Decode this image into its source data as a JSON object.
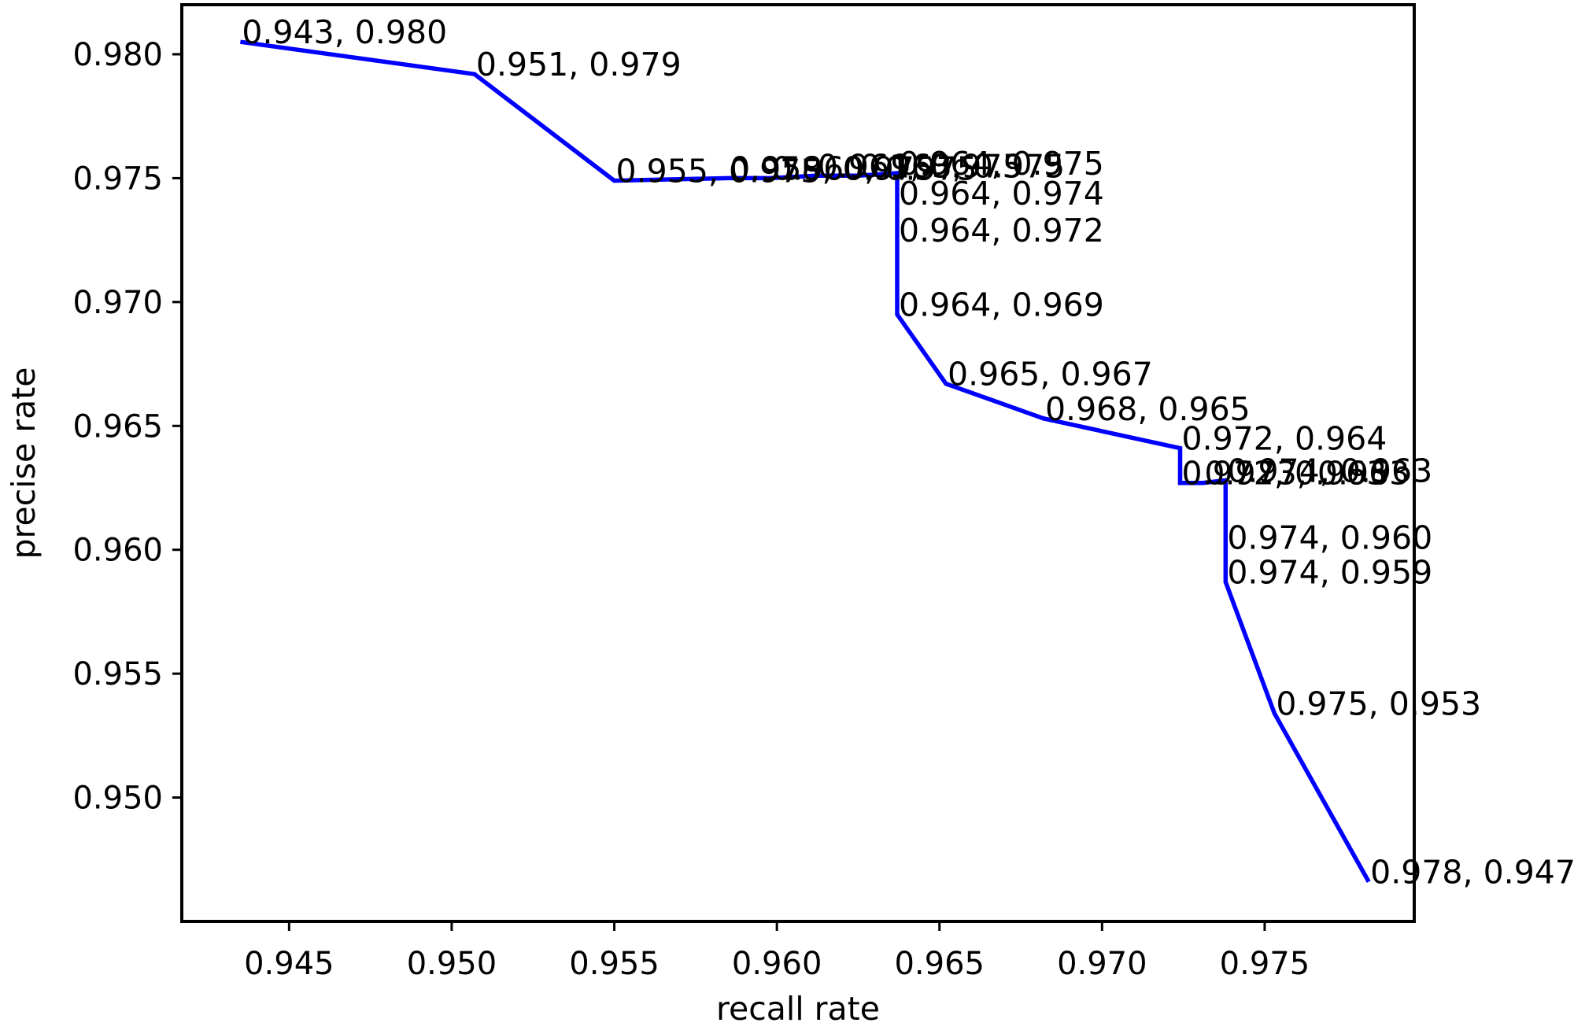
{
  "chart_data": {
    "type": "line",
    "title": "",
    "xlabel": "recall rate",
    "ylabel": "precise rate",
    "xlim": [
      0.9417,
      0.9796
    ],
    "ylim": [
      0.945,
      0.982
    ],
    "x_ticks": [
      0.945,
      0.95,
      0.955,
      0.96,
      0.965,
      0.97,
      0.975
    ],
    "x_tick_labels": [
      "0.945",
      "0.950",
      "0.955",
      "0.960",
      "0.965",
      "0.970",
      "0.975"
    ],
    "y_ticks": [
      0.95,
      0.955,
      0.96,
      0.965,
      0.97,
      0.975,
      0.98
    ],
    "y_tick_labels": [
      "0.950",
      "0.955",
      "0.960",
      "0.965",
      "0.970",
      "0.975",
      "0.980"
    ],
    "grid": false,
    "legend": "none",
    "series": [
      {
        "color": "#0000ff",
        "points": [
          {
            "x": 0.9435,
            "y": 0.9805,
            "label": "0.943, 0.980"
          },
          {
            "x": 0.9507,
            "y": 0.9792,
            "label": "0.951, 0.979"
          },
          {
            "x": 0.955,
            "y": 0.9749,
            "label": "0.955, 0.975"
          },
          {
            "x": 0.9585,
            "y": 0.975,
            "label": "0.958, 0.975"
          },
          {
            "x": 0.9598,
            "y": 0.975,
            "label": "0.960, 0.975"
          },
          {
            "x": 0.9612,
            "y": 0.9751,
            "label": "0.961, 0.975"
          },
          {
            "x": 0.9625,
            "y": 0.9751,
            "label": "0.963, 0.975"
          },
          {
            "x": 0.9637,
            "y": 0.9752,
            "label": "0.964, 0.975"
          },
          {
            "x": 0.9637,
            "y": 0.974,
            "label": "0.964, 0.974"
          },
          {
            "x": 0.9637,
            "y": 0.9725,
            "label": "0.964, 0.972"
          },
          {
            "x": 0.9637,
            "y": 0.9695,
            "label": "0.964, 0.969"
          },
          {
            "x": 0.9652,
            "y": 0.9667,
            "label": "0.965, 0.967"
          },
          {
            "x": 0.9682,
            "y": 0.9653,
            "label": "0.968, 0.965"
          },
          {
            "x": 0.9724,
            "y": 0.9641,
            "label": "0.972, 0.964"
          },
          {
            "x": 0.9724,
            "y": 0.9627,
            "label": "0.972, 0.963"
          },
          {
            "x": 0.9731,
            "y": 0.9627,
            "label": "0.973, 0.963"
          },
          {
            "x": 0.9738,
            "y": 0.9628,
            "label": "0.974, 0.963"
          },
          {
            "x": 0.9738,
            "y": 0.9601,
            "label": "0.974, 0.960"
          },
          {
            "x": 0.9738,
            "y": 0.9587,
            "label": "0.974, 0.959"
          },
          {
            "x": 0.9753,
            "y": 0.9534,
            "label": "0.975, 0.953"
          },
          {
            "x": 0.9782,
            "y": 0.9466,
            "label": "0.978, 0.947"
          }
        ]
      }
    ]
  }
}
